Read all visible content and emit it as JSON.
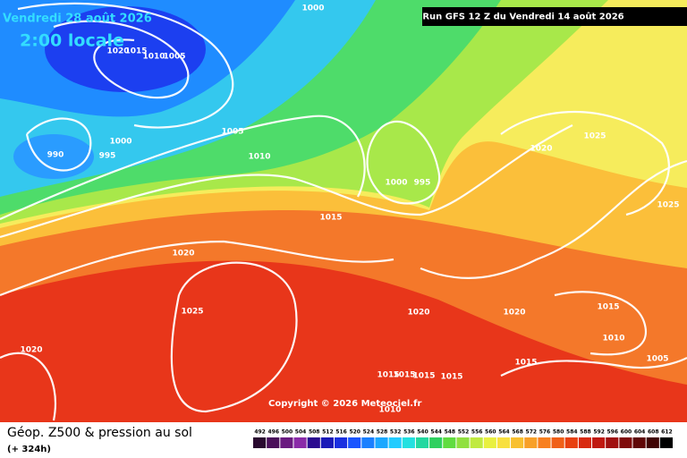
{
  "header": {
    "valid_date": "Vendredi 28 août 2026",
    "local_time": "2:00 locale",
    "run": "Run GFS 12 Z du Vendredi 14 août 2026"
  },
  "isobar_labels": [
    1000,
    1020,
    1015,
    1010,
    1005,
    1000,
    995,
    990,
    1005,
    1010,
    1000,
    995,
    1015,
    1020,
    1025,
    1020,
    1020,
    1020,
    1020,
    1025,
    1025,
    1015,
    1010,
    1015,
    1005,
    1015,
    1015,
    1015,
    1015,
    1010
  ],
  "copyright": "Copyright © 2026 Meteociel.fr",
  "legend": {
    "title": "Géop. Z500 & pression au sol",
    "lead_time": "(+ 324h)",
    "scale": [
      492,
      496,
      500,
      504,
      508,
      512,
      516,
      520,
      524,
      528,
      532,
      536,
      540,
      544,
      548,
      552,
      556,
      560,
      564,
      568,
      572,
      576,
      580,
      584,
      588,
      592,
      596,
      600,
      604,
      608,
      612
    ]
  }
}
